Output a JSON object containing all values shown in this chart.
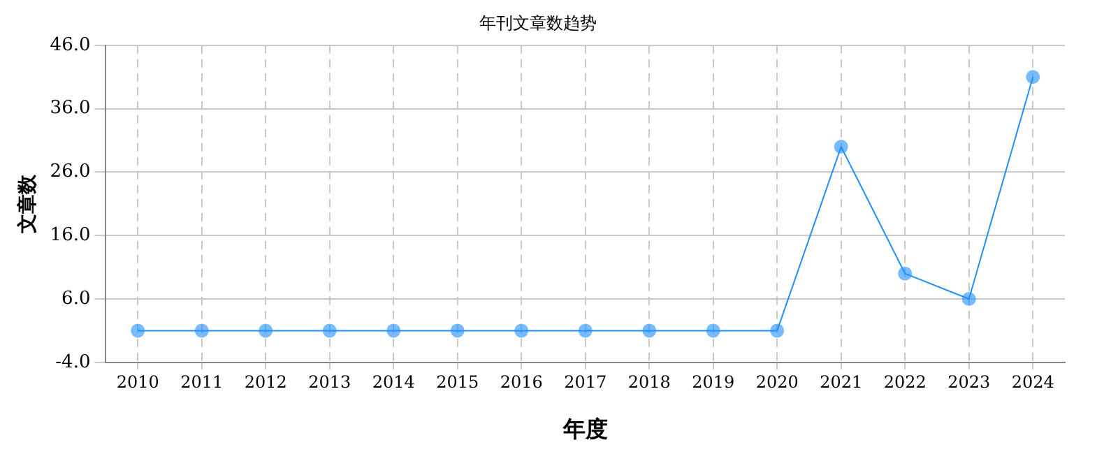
{
  "chart_data": {
    "type": "line",
    "title": "年刊文章数趋势",
    "xlabel": "年度",
    "ylabel": "文章数",
    "categories": [
      "2010",
      "2011",
      "2012",
      "2013",
      "2014",
      "2015",
      "2016",
      "2017",
      "2018",
      "2019",
      "2020",
      "2021",
      "2022",
      "2023",
      "2024"
    ],
    "series": [
      {
        "color": "#1e90ff",
        "values": [
          1,
          1,
          1,
          1,
          1,
          1,
          1,
          1,
          1,
          1,
          1,
          30,
          10,
          6,
          41
        ]
      }
    ],
    "ylim": [
      -4,
      46
    ],
    "yticks": [
      {
        "value": -4,
        "label": "-4.0"
      },
      {
        "value": 6,
        "label": "6.0"
      },
      {
        "value": 16,
        "label": "16.0"
      },
      {
        "value": 26,
        "label": "26.0"
      },
      {
        "value": 36,
        "label": "36.0"
      },
      {
        "value": 46,
        "label": "46.0"
      }
    ],
    "grid": true,
    "marker": "circle",
    "line_style": "solid",
    "legend": false
  }
}
